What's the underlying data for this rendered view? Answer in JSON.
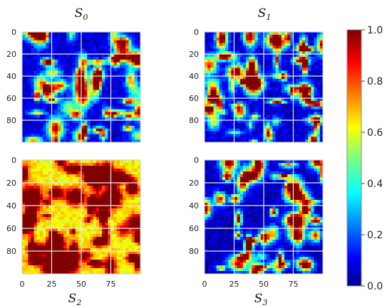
{
  "chart_data": [
    {
      "type": "heatmap",
      "title": "S",
      "title_subscript": "0",
      "x_ticks": [],
      "y_ticks": [
        0,
        20,
        40,
        60,
        80
      ],
      "grid": true,
      "value_range": [
        0.0,
        1.0
      ],
      "seed": 11,
      "bias": 0.0,
      "description_level": "mostly low"
    },
    {
      "type": "heatmap",
      "title": "S",
      "title_subscript": "1",
      "x_ticks": [],
      "y_ticks": [
        0,
        20,
        40,
        60,
        80
      ],
      "grid": true,
      "value_range": [
        0.0,
        1.0
      ],
      "seed": 23,
      "bias": 0.0,
      "description_level": "mostly low"
    },
    {
      "type": "heatmap",
      "title": "S",
      "title_subscript": "2",
      "x_ticks": [
        0,
        25,
        50,
        75
      ],
      "y_ticks": [
        0,
        20,
        40,
        60,
        80
      ],
      "grid": true,
      "value_range": [
        0.0,
        1.0
      ],
      "seed": 37,
      "bias": 0.55,
      "description_level": "mostly high"
    },
    {
      "type": "heatmap",
      "title": "S",
      "title_subscript": "3",
      "x_ticks": [
        0,
        25,
        50,
        75
      ],
      "y_ticks": [
        0,
        20,
        40,
        60,
        80
      ],
      "grid": true,
      "value_range": [
        0.0,
        1.0
      ],
      "seed": 51,
      "bias": -0.02,
      "description_level": "mostly low"
    }
  ],
  "colorbar": {
    "ticks": [
      "0.0",
      "0.2",
      "0.4",
      "0.6",
      "0.8",
      "1.0"
    ],
    "colormap": "jet"
  }
}
